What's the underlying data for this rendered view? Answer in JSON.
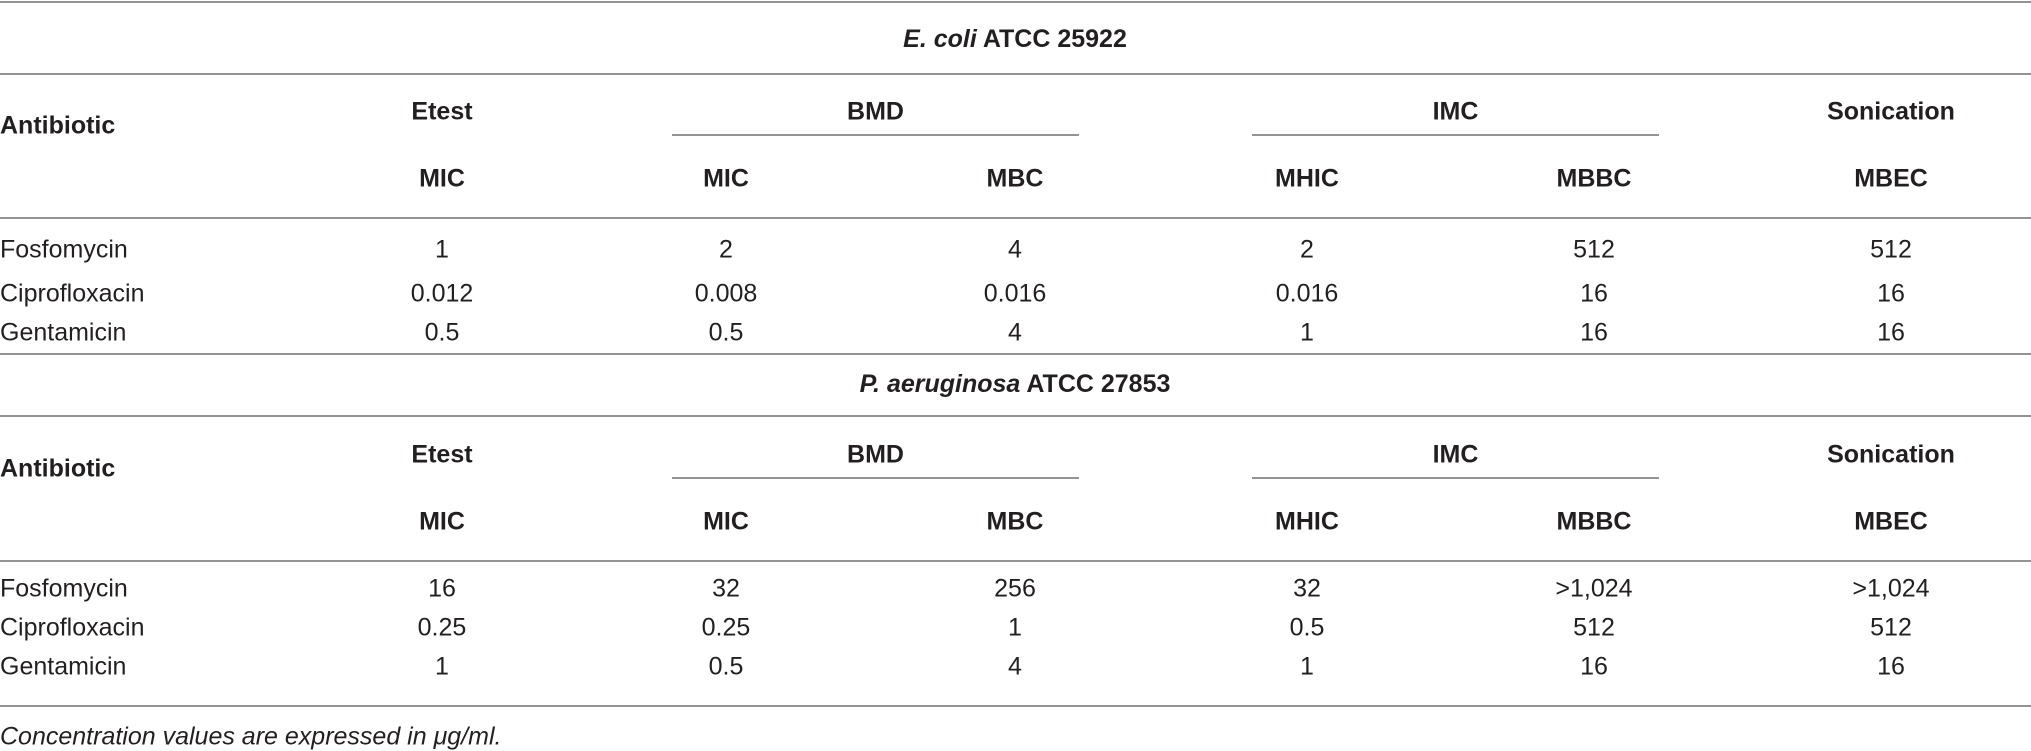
{
  "sections": [
    {
      "title": {
        "organism": "E. coli",
        "strain": "ATCC 25922"
      },
      "header": {
        "first": "Antibiotic",
        "groups": [
          "Etest",
          "BMD",
          "IMC",
          "Sonication"
        ],
        "columns": [
          "MIC",
          "MIC",
          "MBC",
          "MHIC",
          "MBBC",
          "MBEC"
        ]
      },
      "rows": [
        {
          "name": "Fosfomycin",
          "values": [
            "1",
            "2",
            "4",
            "2",
            "512",
            "512"
          ]
        },
        {
          "name": "Ciprofloxacin",
          "values": [
            "0.012",
            "0.008",
            "0.016",
            "0.016",
            "16",
            "16"
          ]
        },
        {
          "name": "Gentamicin",
          "values": [
            "0.5",
            "0.5",
            "4",
            "1",
            "16",
            "16"
          ]
        }
      ]
    },
    {
      "title": {
        "organism": "P. aeruginosa",
        "strain": "ATCC 27853"
      },
      "header": {
        "first": "Antibiotic",
        "groups": [
          "Etest",
          "BMD",
          "IMC",
          "Sonication"
        ],
        "columns": [
          "MIC",
          "MIC",
          "MBC",
          "MHIC",
          "MBBC",
          "MBEC"
        ]
      },
      "rows": [
        {
          "name": "Fosfomycin",
          "values": [
            "16",
            "32",
            "256",
            "32",
            ">1,024",
            ">1,024"
          ]
        },
        {
          "name": "Ciprofloxacin",
          "values": [
            "0.25",
            "0.25",
            "1",
            "0.5",
            "512",
            "512"
          ]
        },
        {
          "name": "Gentamicin",
          "values": [
            "1",
            "0.5",
            "4",
            "1",
            "16",
            "16"
          ]
        }
      ]
    }
  ],
  "footnote": "Concentration values are expressed in μg/ml."
}
